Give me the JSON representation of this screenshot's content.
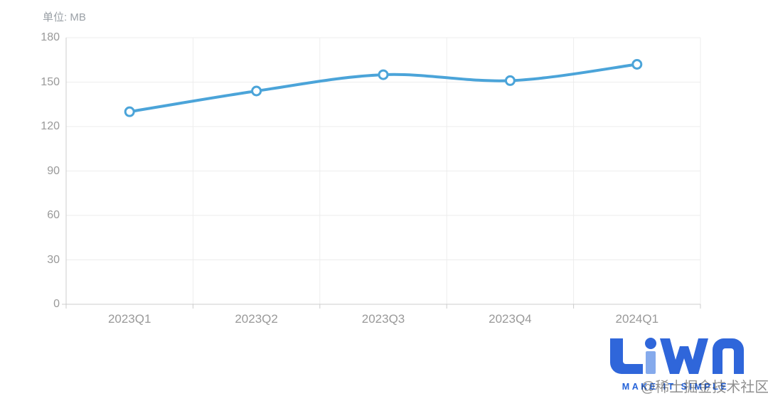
{
  "unit_label": "单位: MB",
  "chart_data": {
    "type": "line",
    "categories": [
      "2023Q1",
      "2023Q2",
      "2023Q3",
      "2023Q4",
      "2024Q1"
    ],
    "values": [
      130,
      144,
      155,
      151,
      162
    ],
    "title": "",
    "xlabel": "",
    "ylabel": "单位: MB",
    "ylim": [
      0,
      180
    ],
    "ytick_step": 30,
    "y_ticks": [
      "180",
      "150",
      "120",
      "90",
      "60",
      "30",
      "0"
    ],
    "grid": true,
    "smooth": true,
    "legend": "none",
    "line_color": "#4BA4D9",
    "marker_style": "open-circle"
  },
  "colors": {
    "line": "#4BA4D9",
    "grid": "#ededed",
    "axis": "#cccccc",
    "tick_label": "#999999",
    "logo_blue": "#2563d9",
    "logo_light_blue": "#85aaec",
    "background": "#ffffff"
  },
  "logo": {
    "text": "LiWA",
    "tagline": "MAKE IT SIMPLE"
  },
  "watermark": "@稀土掘金技术社区"
}
